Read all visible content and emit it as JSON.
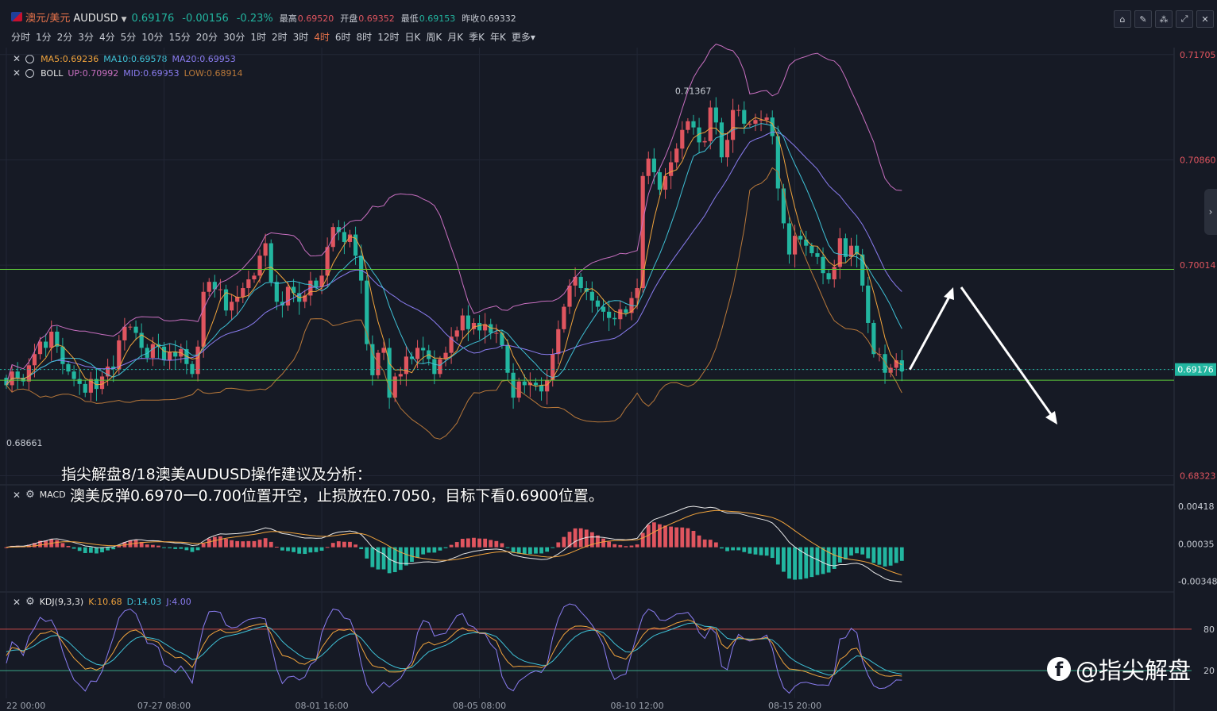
{
  "header": {
    "symbol_name": "澳元/美元",
    "symbol_code": "AUDUSD",
    "price": "0.69176",
    "change": "-0.00156",
    "change_pct": "-0.23%",
    "high_label": "最高",
    "high": "0.69520",
    "open_label": "开盘",
    "open": "0.69352",
    "low_label": "最低",
    "low": "0.69153",
    "prev_label": "昨收",
    "prev": "0.69332"
  },
  "timeframes": [
    "分时",
    "1分",
    "2分",
    "3分",
    "4分",
    "5分",
    "10分",
    "15分",
    "20分",
    "30分",
    "1时",
    "2时",
    "3时",
    "4时",
    "6时",
    "8时",
    "12时",
    "日K",
    "周K",
    "月K",
    "季K",
    "年K",
    "更多▾"
  ],
  "active_timeframe": "4时",
  "toolbar_icons": [
    "chart-style-icon",
    "draw-icon",
    "indicator-icon",
    "expand-icon",
    "close-icon"
  ],
  "colors": {
    "up": "#e0555f",
    "down": "#22b6a0",
    "ma5": "#f0a33c",
    "ma10": "#3fc1d6",
    "ma20": "#8a7cf0",
    "boll_up": "#c86fc0",
    "boll_mid": "#8a7cf0",
    "boll_low": "#b8783a",
    "support_line": "#5ec93a",
    "price_line": "#22b6a0"
  },
  "indicators": {
    "ma": {
      "ma5": "MA5:0.69236",
      "ma10": "MA10:0.69578",
      "ma20": "MA20:0.69953"
    },
    "boll": {
      "name": "BOLL",
      "up": "UP:0.70992",
      "mid": "MID:0.69953",
      "low": "LOW:0.68914"
    },
    "macd": {
      "name": "MACD"
    },
    "kdj": {
      "name": "KDJ(9,3,3)",
      "k": "K:10.68",
      "d": "D:14.03",
      "j": "J:4.00"
    }
  },
  "annotation": {
    "line1": "指尖解盘8/18澳美AUDUSD操作建议及分析：",
    "line2": "澳美反弹0.6970一0.700位置开空，止损放在0.7050，目标下看0.6900位置。"
  },
  "watermark": "@指尖解盘",
  "chart_data": {
    "type": "candlestick",
    "timeframe": "4时",
    "price_axis": {
      "ticks": [
        "0.71705",
        "0.70860",
        "0.70014",
        "0.69176",
        "0.68323"
      ],
      "range": [
        0.6832,
        0.7171
      ]
    },
    "current_price": 0.69176,
    "max_label": "0.71367",
    "min_label": "0.68661",
    "horizontal_lines": [
      0.6998,
      0.6909
    ],
    "x_ticks": [
      "22 00:00",
      "07-27 08:00",
      "08-01 16:00",
      "08-05 08:00",
      "08-10 12:00",
      "08-15 20:00"
    ],
    "macd_axis": {
      "ticks": [
        "0.00418",
        "0.00035",
        "-0.00348"
      ]
    },
    "kdj_axis": {
      "ticks": [
        "80",
        "20"
      ]
    },
    "close": [
      0.6905,
      0.6916,
      0.6911,
      0.6908,
      0.6921,
      0.693,
      0.694,
      0.6935,
      0.6948,
      0.6936,
      0.6922,
      0.6916,
      0.691,
      0.6906,
      0.6899,
      0.691,
      0.6902,
      0.6912,
      0.692,
      0.6918,
      0.6941,
      0.6952,
      0.6952,
      0.6947,
      0.6935,
      0.6927,
      0.6938,
      0.6936,
      0.6925,
      0.6932,
      0.6928,
      0.6934,
      0.6922,
      0.6914,
      0.6936,
      0.698,
      0.6988,
      0.6982,
      0.6982,
      0.6965,
      0.6972,
      0.6976,
      0.6983,
      0.699,
      0.6993,
      0.7009,
      0.7019,
      0.6988,
      0.6972,
      0.6969,
      0.6984,
      0.6979,
      0.6972,
      0.6977,
      0.6989,
      0.6984,
      0.6993,
      0.7016,
      0.7032,
      0.7028,
      0.702,
      0.7026,
      0.7009,
      0.6989,
      0.6938,
      0.6913,
      0.6931,
      0.6935,
      0.6895,
      0.6912,
      0.6914,
      0.6928,
      0.6926,
      0.6935,
      0.6933,
      0.6926,
      0.6914,
      0.6926,
      0.6931,
      0.6944,
      0.6949,
      0.6961,
      0.695,
      0.6955,
      0.6949,
      0.6954,
      0.6947,
      0.6947,
      0.6937,
      0.6915,
      0.6895,
      0.6908,
      0.6905,
      0.6907,
      0.6905,
      0.69,
      0.6909,
      0.693,
      0.695,
      0.6968,
      0.6985,
      0.6992,
      0.6983,
      0.698,
      0.6973,
      0.6968,
      0.6964,
      0.6959,
      0.6958,
      0.6966,
      0.6963,
      0.6975,
      0.6983,
      0.7073,
      0.7087,
      0.7076,
      0.7062,
      0.7073,
      0.7084,
      0.7095,
      0.711,
      0.7117,
      0.7112,
      0.71,
      0.7101,
      0.7128,
      0.7116,
      0.7088,
      0.7102,
      0.7126,
      0.7126,
      0.7115,
      0.7115,
      0.7118,
      0.7118,
      0.712,
      0.7105,
      0.7063,
      0.7035,
      0.701,
      0.7025,
      0.7022,
      0.7017,
      0.7011,
      0.7008,
      0.6995,
      0.699,
      0.7,
      0.7023,
      0.7008,
      0.7017,
      0.701,
      0.6985,
      0.6955,
      0.693,
      0.693,
      0.6915,
      0.6919,
      0.6925,
      0.6918
    ]
  }
}
